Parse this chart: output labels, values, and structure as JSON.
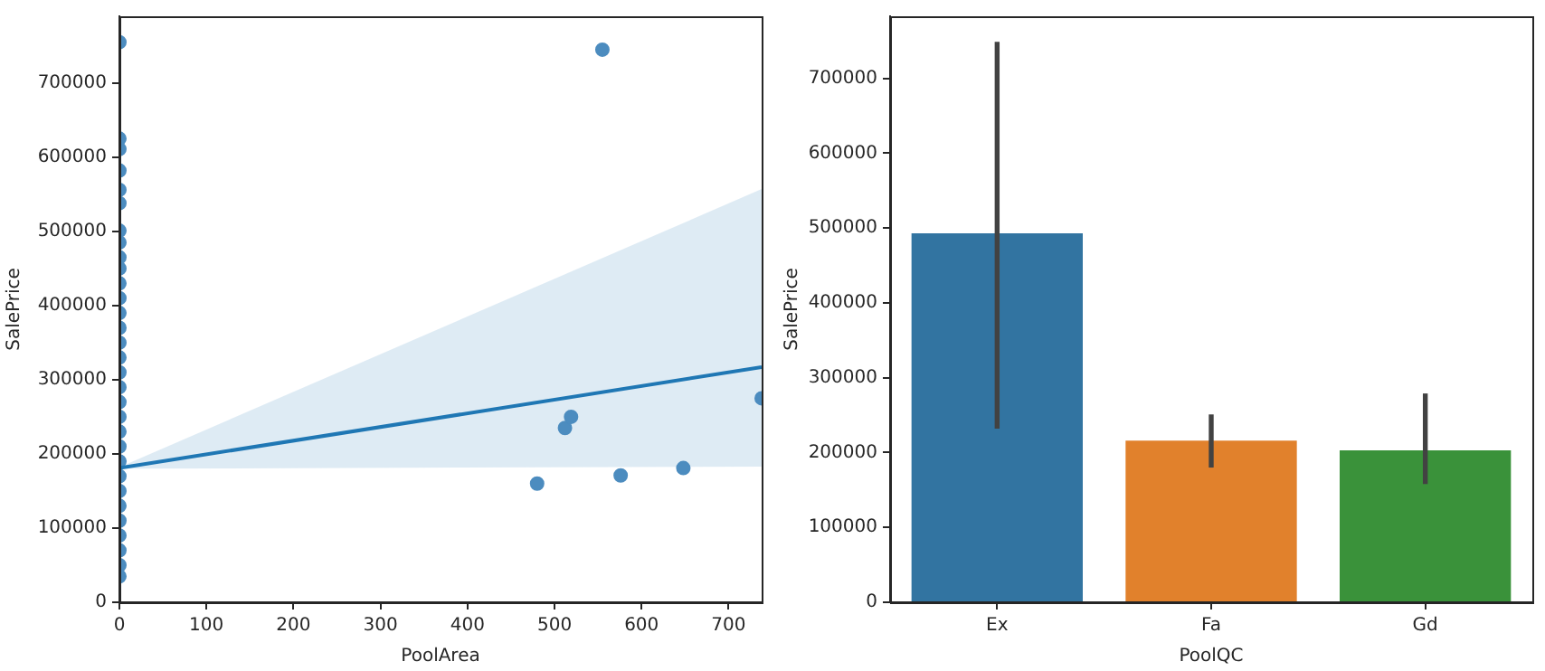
{
  "chart_data": [
    {
      "type": "scatter",
      "xlabel": "PoolArea",
      "ylabel": "SalePrice",
      "xlim": [
        0,
        738
      ],
      "xticks": [
        0,
        100,
        200,
        300,
        400,
        500,
        600,
        700
      ],
      "ylim": [
        0,
        790000
      ],
      "yticks": [
        0,
        100000,
        200000,
        300000,
        400000,
        500000,
        600000,
        700000
      ],
      "grid": false,
      "legend": false,
      "series": [
        {
          "type": "scatter",
          "marker": "circle",
          "color": "#4c8cbf",
          "x": [
            0,
            0,
            0,
            0,
            0,
            0,
            0,
            0,
            0,
            0,
            0,
            0,
            0,
            0,
            0,
            0,
            0,
            0,
            0,
            0,
            0,
            0,
            0,
            0,
            0,
            0,
            0,
            0,
            0,
            0,
            0,
            480,
            512,
            519,
            555,
            576,
            648,
            738
          ],
          "values": [
            755000,
            625000,
            611000,
            582000,
            556000,
            538000,
            501000,
            485000,
            465000,
            450000,
            430000,
            410000,
            390000,
            370000,
            350000,
            330000,
            310000,
            290000,
            270000,
            250000,
            230000,
            210000,
            190000,
            170000,
            150000,
            130000,
            110000,
            90000,
            70000,
            50000,
            35000,
            160000,
            235000,
            250000,
            745000,
            171000,
            181000,
            275000
          ]
        },
        {
          "type": "line",
          "marker": "none",
          "color": "#1f77b4",
          "x": [
            0,
            738
          ],
          "values": [
            181000,
            317000
          ],
          "lower": [
            180000,
            183000
          ],
          "upper": [
            182000,
            557000
          ]
        }
      ]
    },
    {
      "type": "bar",
      "xlabel": "PoolQC",
      "ylabel": "SalePrice",
      "categories": [
        "Ex",
        "Fa",
        "Gd"
      ],
      "values": [
        493000,
        216000,
        203000
      ],
      "colors": [
        "#3274a1",
        "#e1812c",
        "#3a923a"
      ],
      "errors": [
        [
          232000,
          749000
        ],
        [
          180000,
          251000
        ],
        [
          158000,
          279000
        ]
      ],
      "ylim": [
        0,
        783000
      ],
      "yticks": [
        0,
        100000,
        200000,
        300000,
        400000,
        500000,
        600000,
        700000
      ],
      "grid": false,
      "legend": false
    }
  ]
}
